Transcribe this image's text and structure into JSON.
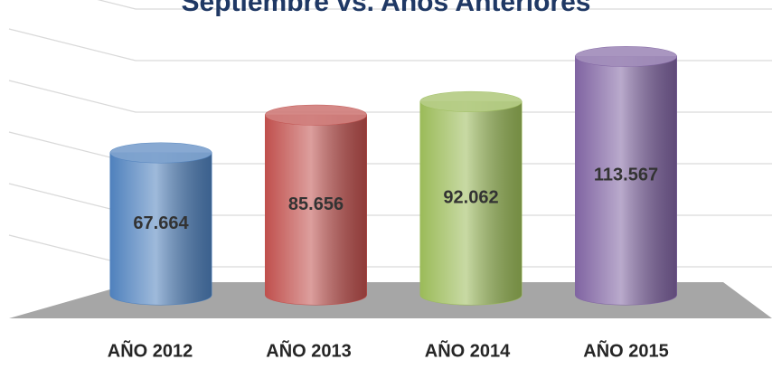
{
  "chart_data": {
    "type": "cylinder",
    "title": "Septiembre vs. Años Anteriores",
    "categories": [
      "AÑO 2012",
      "AÑO 2013",
      "AÑO 2014",
      "AÑO 2015"
    ],
    "values": [
      67664,
      85656,
      92062,
      113567
    ],
    "value_labels": [
      "67.664",
      "85.656",
      "92.062",
      "113.567"
    ],
    "colors": [
      "#4f81bd",
      "#c0504d",
      "#9bbb59",
      "#8064a2"
    ],
    "ylim": [
      0,
      120000
    ],
    "yticks": [
      0,
      20000,
      40000,
      60000,
      80000,
      100000,
      120000
    ],
    "grid": true
  }
}
